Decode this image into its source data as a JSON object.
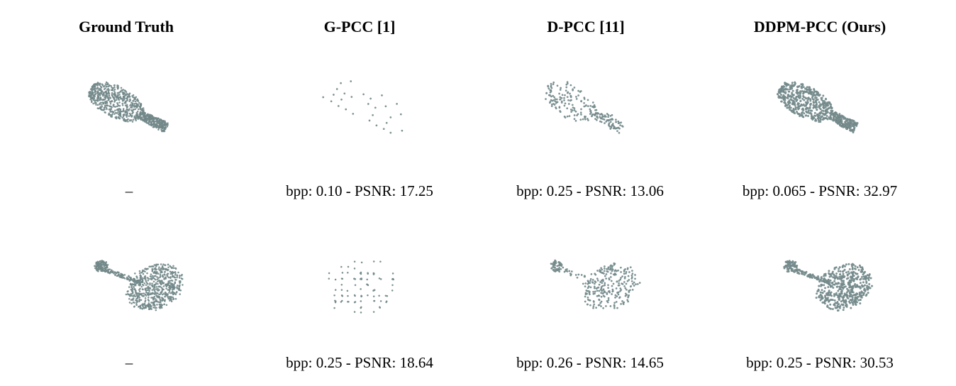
{
  "figure": {
    "columns": [
      {
        "header": "Ground Truth"
      },
      {
        "header": "G-PCC [1]"
      },
      {
        "header": "D-PCC [11]"
      },
      {
        "header": "DDPM-PCC (Ours)"
      }
    ],
    "rows": [
      {
        "captions": [
          "–",
          "bpp: 0.10 - PSNR: 17.25",
          "bpp: 0.25 - PSNR: 13.06",
          "bpp: 0.065 - PSNR: 32.97"
        ]
      },
      {
        "captions": [
          "–",
          "bpp: 0.25 - PSNR: 18.64",
          "bpp: 0.26 - PSNR: 14.65",
          "bpp: 0.25 - PSNR: 30.53"
        ]
      }
    ],
    "colors": {
      "point_fill": "#7f9596",
      "point_stroke": "#5f7475"
    }
  }
}
